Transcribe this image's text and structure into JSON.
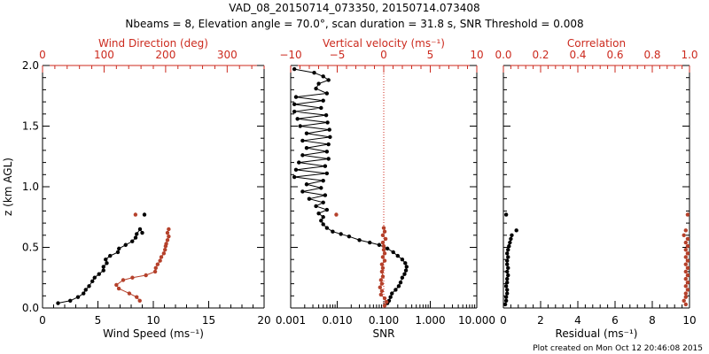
{
  "title_line1": "VAD_08_20150714_073350, 20150714.073408",
  "title_line2": "Nbeams = 8, Elevation angle = 70.0°, scan duration = 31.8 s, SNR Threshold = 0.008",
  "footer": "Plot created on Mon Oct 12 20:46:08 2015",
  "colors": {
    "black_series": "#000000",
    "red_series": "#b5412b",
    "red_axis": "#cc2a1e"
  },
  "chart_data": [
    {
      "type": "line",
      "panel": "wind",
      "ylabel": "z (km AGL)",
      "ylim": [
        0,
        2.0
      ],
      "yticks": [
        "0.0",
        "0.5",
        "1.0",
        "1.5",
        "2.0"
      ],
      "bottom_axis": {
        "label": "Wind Speed (ms⁻¹)",
        "range": [
          0,
          20
        ],
        "ticks": [
          "0",
          "5",
          "10",
          "15",
          "20"
        ]
      },
      "top_axis": {
        "label": "Wind Direction (deg)",
        "range": [
          0,
          360
        ],
        "ticks": [
          "0",
          "100",
          "200",
          "300"
        ]
      },
      "series": [
        {
          "axis": "bottom",
          "color": "black",
          "points": [
            [
              1.4,
              0.04
            ],
            [
              2.5,
              0.06
            ],
            [
              3.2,
              0.09
            ],
            [
              3.7,
              0.12
            ],
            [
              3.9,
              0.15
            ],
            [
              4.2,
              0.18
            ],
            [
              4.5,
              0.22
            ],
            [
              4.7,
              0.25
            ],
            [
              5.1,
              0.28
            ],
            [
              5.5,
              0.31
            ],
            [
              5.5,
              0.34
            ],
            [
              5.8,
              0.37
            ],
            [
              5.7,
              0.4
            ],
            [
              6.1,
              0.43
            ],
            [
              6.8,
              0.46
            ],
            [
              6.9,
              0.49
            ],
            [
              7.5,
              0.52
            ],
            [
              8.1,
              0.55
            ],
            [
              8.4,
              0.58
            ],
            [
              8.5,
              0.61
            ],
            [
              8.8,
              0.65
            ],
            [
              9.0,
              0.62
            ],
            [
              9.2,
              0.77
            ]
          ]
        },
        {
          "axis": "top",
          "color": "red",
          "points": [
            [
              158,
              0.06
            ],
            [
              153,
              0.09
            ],
            [
              141,
              0.12
            ],
            [
              124,
              0.16
            ],
            [
              120,
              0.19
            ],
            [
              131,
              0.23
            ],
            [
              146,
              0.25
            ],
            [
              168,
              0.27
            ],
            [
              183,
              0.3
            ],
            [
              184,
              0.33
            ],
            [
              187,
              0.36
            ],
            [
              191,
              0.39
            ],
            [
              193,
              0.42
            ],
            [
              197,
              0.45
            ],
            [
              199,
              0.48
            ],
            [
              200,
              0.51
            ],
            [
              201,
              0.53
            ],
            [
              203,
              0.56
            ],
            [
              205,
              0.59
            ],
            [
              203,
              0.62
            ],
            [
              205,
              0.65
            ],
            [
              151,
              0.77
            ]
          ]
        }
      ]
    },
    {
      "type": "line",
      "panel": "snr",
      "ylim": [
        0,
        2.0
      ],
      "bottom_axis": {
        "label": "SNR",
        "scale": "log",
        "range": [
          0.001,
          10
        ],
        "ticks": [
          "0.001",
          "0.010",
          "0.100",
          "1.000",
          "10.000"
        ]
      },
      "top_axis": {
        "label": "Vertical velocity (ms⁻¹)",
        "range": [
          -10,
          10
        ],
        "ticks": [
          "−10",
          "−5",
          "0",
          "5",
          "10"
        ]
      },
      "series": [
        {
          "axis": "bottom",
          "color": "black",
          "points": [
            [
              0.12,
              0.04
            ],
            [
              0.13,
              0.06
            ],
            [
              0.14,
              0.09
            ],
            [
              0.15,
              0.12
            ],
            [
              0.18,
              0.15
            ],
            [
              0.21,
              0.18
            ],
            [
              0.23,
              0.21
            ],
            [
              0.25,
              0.25
            ],
            [
              0.28,
              0.28
            ],
            [
              0.3,
              0.31
            ],
            [
              0.31,
              0.34
            ],
            [
              0.29,
              0.37
            ],
            [
              0.25,
              0.4
            ],
            [
              0.2,
              0.43
            ],
            [
              0.16,
              0.46
            ],
            [
              0.12,
              0.49
            ],
            [
              0.08,
              0.52
            ],
            [
              0.05,
              0.54
            ],
            [
              0.03,
              0.56
            ],
            [
              0.018,
              0.59
            ],
            [
              0.012,
              0.61
            ],
            [
              0.008,
              0.63
            ],
            [
              0.006,
              0.66
            ],
            [
              0.005,
              0.69
            ],
            [
              0.0045,
              0.72
            ],
            [
              0.005,
              0.75
            ],
            [
              0.004,
              0.78
            ],
            [
              0.006,
              0.81
            ],
            [
              0.0035,
              0.84
            ],
            [
              0.005,
              0.87
            ],
            [
              0.0025,
              0.9
            ],
            [
              0.0055,
              0.93
            ],
            [
              0.0018,
              0.96
            ],
            [
              0.0045,
              0.99
            ],
            [
              0.0022,
              1.02
            ],
            [
              0.005,
              1.05
            ],
            [
              0.0012,
              1.08
            ],
            [
              0.006,
              1.11
            ],
            [
              0.0013,
              1.14
            ],
            [
              0.0055,
              1.17
            ],
            [
              0.0015,
              1.2
            ],
            [
              0.0065,
              1.23
            ],
            [
              0.0018,
              1.26
            ],
            [
              0.006,
              1.29
            ],
            [
              0.0022,
              1.32
            ],
            [
              0.0065,
              1.35
            ],
            [
              0.0018,
              1.38
            ],
            [
              0.007,
              1.41
            ],
            [
              0.0022,
              1.44
            ],
            [
              0.0068,
              1.47
            ],
            [
              0.0016,
              1.5
            ],
            [
              0.0062,
              1.53
            ],
            [
              0.0014,
              1.56
            ],
            [
              0.0058,
              1.59
            ],
            [
              0.0012,
              1.62
            ],
            [
              0.0045,
              1.65
            ],
            [
              0.0012,
              1.68
            ],
            [
              0.005,
              1.71
            ],
            [
              0.0013,
              1.74
            ],
            [
              0.006,
              1.77
            ],
            [
              0.0035,
              1.81
            ],
            [
              0.004,
              1.85
            ],
            [
              0.0065,
              1.88
            ],
            [
              0.005,
              1.91
            ],
            [
              0.0032,
              1.94
            ],
            [
              0.0012,
              1.97
            ]
          ]
        },
        {
          "axis": "top",
          "color": "red",
          "points": [
            [
              0.1,
              0.02
            ],
            [
              0.3,
              0.05
            ],
            [
              0.1,
              0.08
            ],
            [
              -0.3,
              0.11
            ],
            [
              -0.2,
              0.14
            ],
            [
              -0.4,
              0.17
            ],
            [
              -0.2,
              0.2
            ],
            [
              -0.3,
              0.23
            ],
            [
              -0.1,
              0.26
            ],
            [
              -0.2,
              0.3
            ],
            [
              -0.1,
              0.33
            ],
            [
              -0.2,
              0.36
            ],
            [
              0.1,
              0.39
            ],
            [
              -0.1,
              0.42
            ],
            [
              0.1,
              0.45
            ],
            [
              0.0,
              0.48
            ],
            [
              0.0,
              0.51
            ],
            [
              -0.1,
              0.54
            ],
            [
              0.2,
              0.57
            ],
            [
              -0.1,
              0.6
            ],
            [
              0.1,
              0.63
            ],
            [
              0.0,
              0.66
            ],
            [
              -5.1,
              0.77
            ]
          ]
        }
      ]
    },
    {
      "type": "scatter",
      "panel": "residual",
      "ylim": [
        0,
        2.0
      ],
      "bottom_axis": {
        "label": "Residual (ms⁻¹)",
        "range": [
          0,
          10
        ],
        "ticks": [
          "0",
          "2",
          "4",
          "6",
          "8",
          "10"
        ]
      },
      "top_axis": {
        "label": "Correlation",
        "range": [
          0,
          1.0
        ],
        "ticks": [
          "0.0",
          "0.2",
          "0.4",
          "0.6",
          "0.8",
          "1.0"
        ]
      },
      "series": [
        {
          "axis": "bottom",
          "color": "black",
          "points": [
            [
              0.1,
              0.03
            ],
            [
              0.15,
              0.06
            ],
            [
              0.15,
              0.09
            ],
            [
              0.2,
              0.12
            ],
            [
              0.2,
              0.15
            ],
            [
              0.15,
              0.18
            ],
            [
              0.2,
              0.21
            ],
            [
              0.2,
              0.24
            ],
            [
              0.25,
              0.27
            ],
            [
              0.2,
              0.3
            ],
            [
              0.25,
              0.33
            ],
            [
              0.2,
              0.36
            ],
            [
              0.2,
              0.39
            ],
            [
              0.25,
              0.42
            ],
            [
              0.2,
              0.45
            ],
            [
              0.25,
              0.48
            ],
            [
              0.3,
              0.51
            ],
            [
              0.35,
              0.54
            ],
            [
              0.4,
              0.57
            ],
            [
              0.45,
              0.6
            ],
            [
              0.7,
              0.64
            ],
            [
              0.15,
              0.77
            ]
          ]
        },
        {
          "axis": "top",
          "color": "red",
          "points": [
            [
              0.98,
              0.03
            ],
            [
              0.97,
              0.06
            ],
            [
              0.98,
              0.09
            ],
            [
              0.98,
              0.12
            ],
            [
              0.99,
              0.15
            ],
            [
              0.98,
              0.18
            ],
            [
              0.99,
              0.21
            ],
            [
              0.98,
              0.24
            ],
            [
              0.99,
              0.27
            ],
            [
              0.98,
              0.3
            ],
            [
              0.99,
              0.33
            ],
            [
              0.98,
              0.36
            ],
            [
              0.99,
              0.39
            ],
            [
              0.98,
              0.42
            ],
            [
              0.99,
              0.45
            ],
            [
              0.98,
              0.48
            ],
            [
              0.99,
              0.51
            ],
            [
              0.98,
              0.54
            ],
            [
              0.99,
              0.57
            ],
            [
              0.97,
              0.6
            ],
            [
              0.98,
              0.64
            ],
            [
              0.99,
              0.77
            ]
          ]
        }
      ]
    }
  ]
}
